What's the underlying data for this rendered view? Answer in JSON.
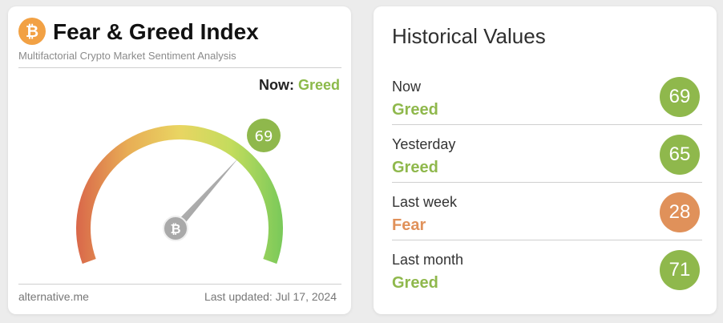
{
  "fear_greed": {
    "title": "Fear & Greed Index",
    "subtitle": "Multifactorial Crypto Market Sentiment Analysis",
    "now_label": "Now:",
    "now_classification": "Greed",
    "value": "69",
    "value_number": 69,
    "value_color": "#8fb84c",
    "logo_icon": "bitcoin-icon",
    "source": "alternative.me",
    "last_updated": "Last updated: Jul 17, 2024"
  },
  "historical": {
    "title": "Historical Values",
    "rows": [
      {
        "period": "Now",
        "classification": "Greed",
        "value": "69",
        "color": "#8fb84c"
      },
      {
        "period": "Yesterday",
        "classification": "Greed",
        "value": "65",
        "color": "#8fb84c"
      },
      {
        "period": "Last week",
        "classification": "Fear",
        "value": "28",
        "color": "#e0915a"
      },
      {
        "period": "Last month",
        "classification": "Greed",
        "value": "71",
        "color": "#8fb84c"
      }
    ]
  }
}
